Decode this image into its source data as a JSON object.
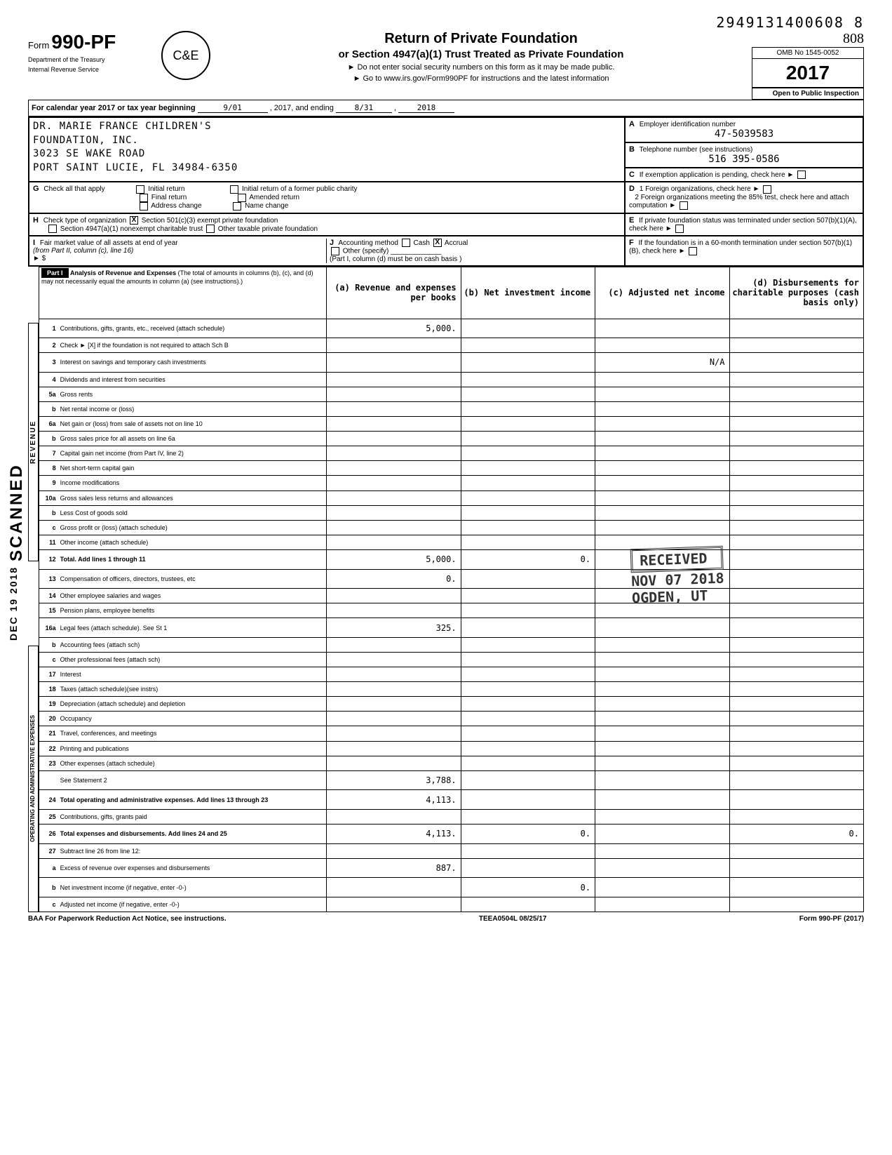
{
  "tracking_number": "2949131400608 8",
  "form": {
    "prefix": "Form",
    "number": "990-PF",
    "title": "Return of Private Foundation",
    "subtitle": "or Section 4947(a)(1) Trust Treated as Private Foundation",
    "warning1": "► Do not enter social security numbers on this form as it may be made public.",
    "warning2": "► Go to www.irs.gov/Form990PF for instructions and the latest information",
    "dept1": "Department of the Treasury",
    "dept2": "Internal Revenue Service",
    "omb": "OMB No 1545-0052",
    "year": "2017",
    "inspection": "Open to Public Inspection"
  },
  "calendar": {
    "label": "For calendar year 2017 or tax year beginning",
    "start": "9/01",
    "mid": ", 2017, and ending",
    "end_month": "8/31",
    "end_year": "2018"
  },
  "org": {
    "name1": "DR. MARIE FRANCE CHILDREN'S",
    "name2": "FOUNDATION, INC.",
    "addr1": "3023 SE WAKE ROAD",
    "addr2": "PORT SAINT LUCIE, FL 34984-6350"
  },
  "box_a": {
    "label": "Employer identification number",
    "value": "47-5039583"
  },
  "box_b": {
    "label": "Telephone number (see instructions)",
    "value": "516 395-0586"
  },
  "box_c": {
    "label": "If exemption application is pending, check here"
  },
  "section_g": {
    "label": "Check all that apply",
    "opts": [
      "Initial return",
      "Final return",
      "Address change",
      "Initial return of a former public charity",
      "Amended return",
      "Name change"
    ]
  },
  "section_d": {
    "d1": "Foreign organizations, check here",
    "d2": "Foreign organizations meeting the 85% test, check here and attach computation"
  },
  "section_h": {
    "label": "Check type of organization",
    "opt1": "Section 501(c)(3) exempt private foundation",
    "opt2": "Section 4947(a)(1) nonexempt charitable trust",
    "opt3": "Other taxable private foundation"
  },
  "section_e": {
    "label": "If private foundation status was terminated under section 507(b)(1)(A), check here"
  },
  "section_i": {
    "label": "Fair market value of all assets at end of year",
    "sub": "(from Part II, column (c), line 16)",
    "arrow": "► $"
  },
  "section_j": {
    "label": "Accounting method",
    "opts": [
      "Cash",
      "Accrual"
    ],
    "other": "Other (specify)",
    "note": "(Part I, column (d) must be on cash basis )"
  },
  "section_f": {
    "label": "If the foundation is in a 60-month termination under section 507(b)(1)(B), check here"
  },
  "part1": {
    "label": "Part I",
    "title": "Analysis of Revenue and Expenses",
    "sub": "(The total of amounts in columns (b), (c), and (d) may not necessarily equal the amounts in column (a) (see instructions).)",
    "col_a": "(a) Revenue and expenses per books",
    "col_b": "(b) Net investment income",
    "col_c": "(c) Adjusted net income",
    "col_d": "(d) Disbursements for charitable purposes (cash basis only)"
  },
  "side_labels": {
    "revenue": "REVENUE",
    "admin": "OPERATING AND ADMINISTRATIVE EXPENSES",
    "date_stamp": "DEC 19 2018",
    "scanned": "SCANNED"
  },
  "rows": [
    {
      "n": "1",
      "desc": "Contributions, gifts, grants, etc., received (attach schedule)",
      "a": "5,000."
    },
    {
      "n": "2",
      "desc": "Check ► [X] if the foundation is not required to attach Sch B"
    },
    {
      "n": "3",
      "desc": "Interest on savings and temporary cash investments",
      "c": "N/A"
    },
    {
      "n": "4",
      "desc": "Dividends and interest from securities"
    },
    {
      "n": "5a",
      "desc": "Gross rents"
    },
    {
      "n": "b",
      "desc": "Net rental income or (loss)"
    },
    {
      "n": "6a",
      "desc": "Net gain or (loss) from sale of assets not on line 10"
    },
    {
      "n": "b",
      "desc": "Gross sales price for all assets on line 6a"
    },
    {
      "n": "7",
      "desc": "Capital gain net income (from Part IV, line 2)"
    },
    {
      "n": "8",
      "desc": "Net short-term capital gain"
    },
    {
      "n": "9",
      "desc": "Income modifications"
    },
    {
      "n": "10a",
      "desc": "Gross sales less returns and allowances"
    },
    {
      "n": "b",
      "desc": "Less Cost of goods sold"
    },
    {
      "n": "c",
      "desc": "Gross profit or (loss) (attach schedule)"
    },
    {
      "n": "11",
      "desc": "Other income (attach schedule)"
    },
    {
      "n": "12",
      "desc": "Total. Add lines 1 through 11",
      "a": "5,000.",
      "b": "0."
    },
    {
      "n": "13",
      "desc": "Compensation of officers, directors, trustees, etc",
      "a": "0."
    },
    {
      "n": "14",
      "desc": "Other employee salaries and wages"
    },
    {
      "n": "15",
      "desc": "Pension plans, employee benefits"
    },
    {
      "n": "16a",
      "desc": "Legal fees (attach schedule).      See St 1",
      "a": "325."
    },
    {
      "n": "b",
      "desc": "Accounting fees (attach sch)"
    },
    {
      "n": "c",
      "desc": "Other professional fees (attach sch)"
    },
    {
      "n": "17",
      "desc": "Interest"
    },
    {
      "n": "18",
      "desc": "Taxes (attach schedule)(see instrs)"
    },
    {
      "n": "19",
      "desc": "Depreciation (attach schedule) and depletion"
    },
    {
      "n": "20",
      "desc": "Occupancy"
    },
    {
      "n": "21",
      "desc": "Travel, conferences, and meetings"
    },
    {
      "n": "22",
      "desc": "Printing and publications"
    },
    {
      "n": "23",
      "desc": "Other expenses (attach schedule)"
    },
    {
      "n": "",
      "desc": "See Statement 2",
      "a": "3,788."
    },
    {
      "n": "24",
      "desc": "Total operating and administrative expenses. Add lines 13 through 23",
      "a": "4,113."
    },
    {
      "n": "25",
      "desc": "Contributions, gifts, grants paid"
    },
    {
      "n": "26",
      "desc": "Total expenses and disbursements. Add lines 24 and 25",
      "a": "4,113.",
      "b": "0.",
      "d": "0."
    },
    {
      "n": "27",
      "desc": "Subtract line 26 from line 12:"
    },
    {
      "n": "a",
      "desc": "Excess of revenue over expenses and disbursements",
      "a": "887."
    },
    {
      "n": "b",
      "desc": "Net investment income (if negative, enter -0-)",
      "b": "0."
    },
    {
      "n": "c",
      "desc": "Adjusted net income (if negative, enter -0-)"
    }
  ],
  "stamps": {
    "received": "RECEIVED",
    "date": "NOV 07 2018",
    "location": "OGDEN, UT"
  },
  "footer": {
    "left": "BAA  For Paperwork Reduction Act Notice, see instructions.",
    "mid": "TEEA0504L  08/25/17",
    "right": "Form 990-PF (2017)"
  }
}
